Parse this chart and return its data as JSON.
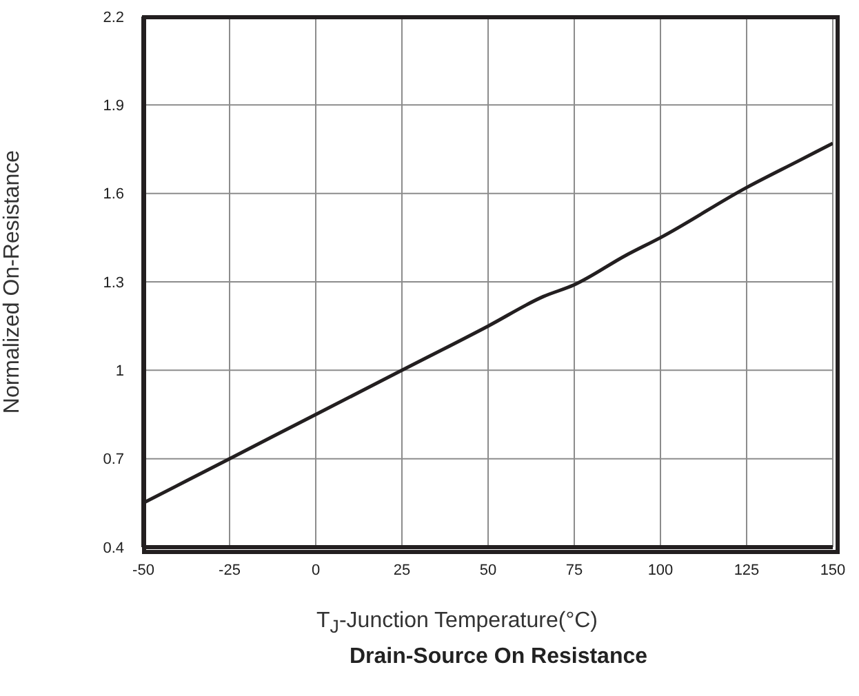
{
  "chart_data": {
    "type": "line",
    "title": "Drain-Source On Resistance",
    "xlabel": "T$_{J}$-Junction Temperature(°C)",
    "ylabel": "Normalized On-Resistance",
    "x": [
      -50,
      -25,
      0,
      25,
      50,
      66,
      75,
      90,
      100,
      125,
      140,
      150
    ],
    "series": [
      {
        "color": "#231f20",
        "values": [
          0.55,
          0.7,
          0.85,
          1.0,
          1.15,
          1.25,
          1.29,
          1.39,
          1.45,
          1.62,
          1.71,
          1.77
        ]
      }
    ],
    "xlim": [
      -50,
      150
    ],
    "xticks": [
      -50,
      -25,
      0,
      25,
      50,
      75,
      100,
      125,
      150
    ],
    "ylim": [
      0.4,
      2.2
    ],
    "yticks": [
      0.4,
      0.7,
      1,
      1.3,
      1.6,
      1.9,
      2.2
    ],
    "grid": true,
    "legend": false,
    "marker": "none",
    "line_style": "solid"
  }
}
